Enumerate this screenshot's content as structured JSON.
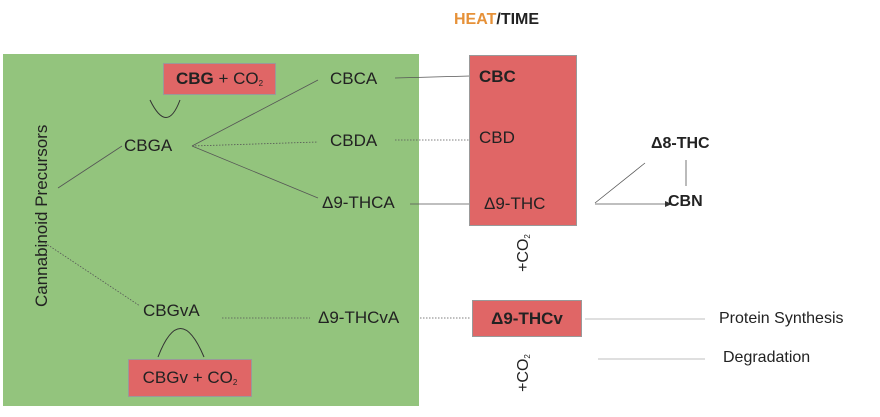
{
  "header": {
    "heat": "HEAT",
    "slash": "/",
    "time": "TIME"
  },
  "colors": {
    "heat": "#e69138",
    "panel": "#93c47d",
    "box": "#e06666"
  },
  "precursors": {
    "side_label": "Cannabinoid Precursors",
    "cbga": "CBGA",
    "cbgva": "CBGvA",
    "cbg_box": {
      "bold": "CBG",
      "rest": " + CO",
      "sub": "2"
    },
    "cbgv_box": {
      "main": "CBGv + CO",
      "sub": "2"
    },
    "acids": {
      "cbca": "CBCA",
      "cbda": "CBDA",
      "thca": "Δ9-THCA",
      "thcva": "Δ9-THCvA"
    }
  },
  "products": {
    "cbc": "CBC",
    "cbd": "CBD",
    "thc": "Δ9-THC",
    "thcv": "Δ9-THCv",
    "co2_top": {
      "plus": "+CO",
      "sub": "2"
    },
    "co2_bottom": {
      "plus": "+CO",
      "sub": "2"
    }
  },
  "degradation": {
    "d8thc": "Δ8-THC",
    "cbn": "CBN",
    "protein_synthesis": "Protein Synthesis",
    "degradation": "Degradation"
  }
}
